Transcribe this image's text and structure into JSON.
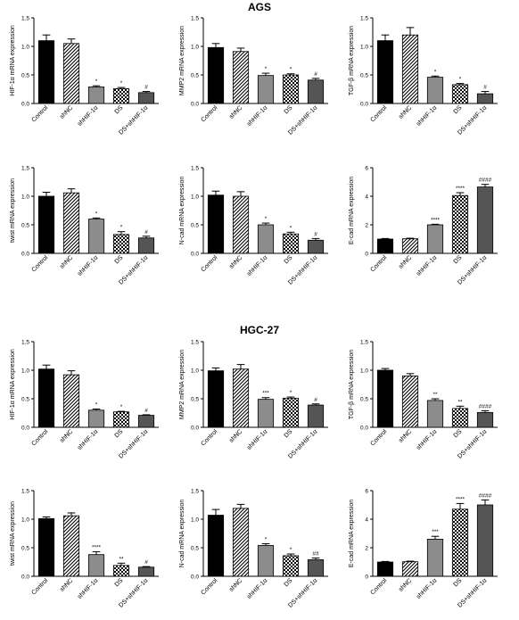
{
  "figure": {
    "sections": [
      {
        "title": "AGS"
      },
      {
        "title": "HGC-27"
      }
    ]
  },
  "colors": {
    "control": "#000000",
    "shNC": "hatch-diagonal",
    "shHIF": "#8c8c8c",
    "DS": "hatch-checker",
    "DS_shHIF": "#555555"
  },
  "chart_data": [
    {
      "type": "bar",
      "section": "AGS",
      "ylabel": "HIF-1α mRNA expression",
      "categories": [
        "Control",
        "shNC",
        "shHIF-1α",
        "DS",
        "DS+shHIF-1α"
      ],
      "values": [
        1.1,
        1.05,
        0.29,
        0.26,
        0.19
      ],
      "errors": [
        0.1,
        0.08,
        0.02,
        0.02,
        0.02
      ],
      "sig": [
        "",
        "",
        "*",
        "*",
        "#"
      ],
      "ylim": [
        0,
        1.5
      ],
      "yticks": [
        "0.0",
        "0.5",
        "1.0",
        "1.5"
      ]
    },
    {
      "type": "bar",
      "section": "AGS",
      "ylabel": "MMP2 mRNA expression",
      "categories": [
        "Control",
        "shNC",
        "shHIF-1α",
        "DS",
        "DS+shHIF-1α"
      ],
      "values": [
        0.98,
        0.91,
        0.49,
        0.5,
        0.41
      ],
      "errors": [
        0.07,
        0.06,
        0.04,
        0.02,
        0.03
      ],
      "sig": [
        "",
        "",
        "*",
        "*",
        "#"
      ],
      "ylim": [
        0,
        1.5
      ],
      "yticks": [
        "0.0",
        "0.5",
        "1.0",
        "1.5"
      ]
    },
    {
      "type": "bar",
      "section": "AGS",
      "ylabel": "TGF-β mRNA expression",
      "categories": [
        "Control",
        "shNC",
        "shHIF-1α",
        "DS",
        "DS+shHIF-1α"
      ],
      "values": [
        1.1,
        1.2,
        0.46,
        0.33,
        0.17
      ],
      "errors": [
        0.1,
        0.13,
        0.02,
        0.02,
        0.04
      ],
      "sig": [
        "",
        "",
        "*",
        "*",
        "#"
      ],
      "ylim": [
        0,
        1.5
      ],
      "yticks": [
        "0.0",
        "0.5",
        "1.0",
        "1.5"
      ]
    },
    {
      "type": "bar",
      "section": "AGS",
      "ylabel": "twist mRNA expression",
      "categories": [
        "Control",
        "shNC",
        "shHIF-1α",
        "DS",
        "DS+shHIF-1α"
      ],
      "values": [
        1.0,
        1.06,
        0.6,
        0.33,
        0.27
      ],
      "errors": [
        0.07,
        0.07,
        0.02,
        0.05,
        0.03
      ],
      "sig": [
        "",
        "",
        "*",
        "*",
        "#"
      ],
      "ylim": [
        0,
        1.5
      ],
      "yticks": [
        "0.0",
        "0.5",
        "1.0",
        "1.5"
      ]
    },
    {
      "type": "bar",
      "section": "AGS",
      "ylabel": "N-cad mRNA expression",
      "categories": [
        "Control",
        "shNC",
        "shHIF-1α",
        "DS",
        "DS+shHIF-1α"
      ],
      "values": [
        1.02,
        1.0,
        0.5,
        0.34,
        0.23
      ],
      "errors": [
        0.07,
        0.08,
        0.03,
        0.03,
        0.03
      ],
      "sig": [
        "",
        "",
        "*",
        "*",
        "#"
      ],
      "ylim": [
        0,
        1.5
      ],
      "yticks": [
        "0.0",
        "0.5",
        "1.0",
        "1.5"
      ]
    },
    {
      "type": "bar",
      "section": "AGS",
      "ylabel": "E-cad mRNA expression",
      "categories": [
        "Control",
        "shNC",
        "shHIF-1α",
        "DS",
        "DS+shHIF-1α"
      ],
      "values": [
        1.0,
        1.02,
        2.0,
        4.05,
        4.65
      ],
      "errors": [
        0.04,
        0.04,
        0.04,
        0.2,
        0.18
      ],
      "sig": [
        "",
        "",
        "****",
        "****",
        "####"
      ],
      "ylim": [
        0,
        6
      ],
      "yticks": [
        "0",
        "2",
        "4",
        "6"
      ]
    },
    {
      "type": "bar",
      "section": "HGC-27",
      "ylabel": "HIF-1α mRNA expression",
      "categories": [
        "Control",
        "shNC",
        "shHIF-1α",
        "DS",
        "DS+shHIF-1α"
      ],
      "values": [
        1.02,
        0.92,
        0.3,
        0.27,
        0.21
      ],
      "errors": [
        0.07,
        0.07,
        0.02,
        0.01,
        0.01
      ],
      "sig": [
        "",
        "",
        "*",
        "*",
        "#"
      ],
      "ylim": [
        0,
        1.5
      ],
      "yticks": [
        "0.0",
        "0.5",
        "1.0",
        "1.5"
      ]
    },
    {
      "type": "bar",
      "section": "HGC-27",
      "ylabel": "MMP2 mRNA expression",
      "categories": [
        "Control",
        "shNC",
        "shHIF-1α",
        "DS",
        "DS+shHIF-1α"
      ],
      "values": [
        0.99,
        1.02,
        0.49,
        0.51,
        0.39
      ],
      "errors": [
        0.05,
        0.08,
        0.03,
        0.02,
        0.02
      ],
      "sig": [
        "",
        "",
        "***",
        "*",
        "#"
      ],
      "ylim": [
        0,
        1.5
      ],
      "yticks": [
        "0.0",
        "0.5",
        "1.0",
        "1.5"
      ]
    },
    {
      "type": "bar",
      "section": "HGC-27",
      "ylabel": "TGF-β mRNA expression",
      "categories": [
        "Control",
        "shNC",
        "shHIF-1α",
        "DS",
        "DS+shHIF-1α"
      ],
      "values": [
        1.0,
        0.9,
        0.47,
        0.33,
        0.26
      ],
      "errors": [
        0.03,
        0.04,
        0.03,
        0.04,
        0.03
      ],
      "sig": [
        "",
        "",
        "**",
        "**",
        "####"
      ],
      "ylim": [
        0,
        1.5
      ],
      "yticks": [
        "0.0",
        "0.5",
        "1.0",
        "1.5"
      ]
    },
    {
      "type": "bar",
      "section": "HGC-27",
      "ylabel": "twist mRNA expression",
      "categories": [
        "Control",
        "shNC",
        "shHIF-1α",
        "DS",
        "DS+shHIF-1α"
      ],
      "values": [
        1.01,
        1.06,
        0.38,
        0.19,
        0.16
      ],
      "errors": [
        0.03,
        0.05,
        0.05,
        0.04,
        0.01
      ],
      "sig": [
        "",
        "",
        "****",
        "**",
        "#"
      ],
      "ylim": [
        0,
        1.5
      ],
      "yticks": [
        "0.0",
        "0.5",
        "1.0",
        "1.5"
      ]
    },
    {
      "type": "bar",
      "section": "HGC-27",
      "ylabel": "N-cad mRNA expression",
      "categories": [
        "Control",
        "shNC",
        "shHIF-1α",
        "DS",
        "DS+shHIF-1α"
      ],
      "values": [
        1.07,
        1.19,
        0.54,
        0.36,
        0.29
      ],
      "errors": [
        0.1,
        0.07,
        0.03,
        0.03,
        0.03
      ],
      "sig": [
        "",
        "",
        "*",
        "*",
        "##"
      ],
      "ylim": [
        0,
        1.5
      ],
      "yticks": [
        "0.0",
        "0.5",
        "1.0",
        "1.5"
      ]
    },
    {
      "type": "bar",
      "section": "HGC-27",
      "ylabel": "E-cad mRNA expression",
      "categories": [
        "Control",
        "shNC",
        "shHIF-1α",
        "DS",
        "DS+shHIF-1α"
      ],
      "values": [
        1.0,
        1.02,
        2.6,
        4.7,
        5.0
      ],
      "errors": [
        0.04,
        0.04,
        0.2,
        0.4,
        0.35
      ],
      "sig": [
        "",
        "",
        "***",
        "****",
        "####"
      ],
      "ylim": [
        0,
        6
      ],
      "yticks": [
        "0",
        "2",
        "4",
        "6"
      ]
    }
  ]
}
